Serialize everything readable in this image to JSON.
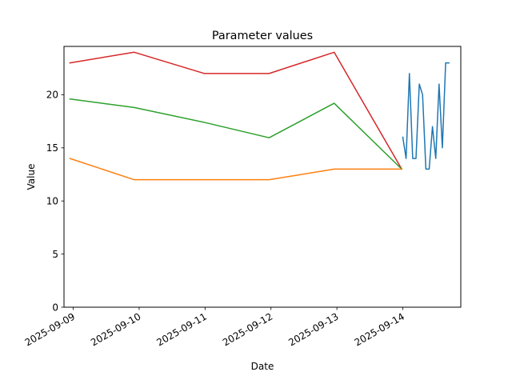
{
  "chart_data": {
    "type": "line",
    "title": "Parameter values",
    "xlabel": "Date",
    "ylabel": "Value",
    "x_tick_labels": [
      "2025-09-09",
      "2025-09-10",
      "2025-09-11",
      "2025-09-12",
      "2025-09-13",
      "2025-09-14"
    ],
    "y_tick_labels": [
      "0",
      "5",
      "10",
      "15",
      "20"
    ],
    "y_ticks": [
      0,
      5,
      10,
      15,
      20
    ],
    "xlim": [
      "2025-09-08 20:38",
      "2025-09-14 21:07"
    ],
    "ylim": [
      0,
      24.55
    ],
    "grid": false,
    "legend": "none",
    "series": [
      {
        "color": "#d62728",
        "x": [
          "2025-09-08 22:48",
          "2025-09-09 22:12",
          "2025-09-10 23:42",
          "2025-09-11 23:19",
          "2025-09-12 23:00",
          "2025-09-13 23:36"
        ],
        "y": [
          23,
          24,
          22,
          22,
          24,
          13
        ]
      },
      {
        "color": "#2ca02c",
        "x": [
          "2025-09-08 22:48",
          "2025-09-09 22:12",
          "2025-09-10 23:42",
          "2025-09-11 23:19",
          "2025-09-12 23:00",
          "2025-09-13 23:36"
        ],
        "y": [
          19.6,
          18.8,
          17.4,
          15.95,
          19.2,
          13
        ]
      },
      {
        "color": "#ff7f0e",
        "x": [
          "2025-09-08 22:48",
          "2025-09-09 22:12",
          "2025-09-10 23:42",
          "2025-09-11 23:19",
          "2025-09-12 23:00",
          "2025-09-13 23:36"
        ],
        "y": [
          14,
          12,
          12,
          12,
          13,
          13
        ]
      },
      {
        "color": "#1f77b4",
        "x": [
          "2025-09-14 00:00",
          "2025-09-14 01:12",
          "2025-09-14 02:24",
          "2025-09-14 03:36",
          "2025-09-14 04:48",
          "2025-09-14 06:00",
          "2025-09-14 07:12",
          "2025-09-14 08:24",
          "2025-09-14 09:36",
          "2025-09-14 10:48",
          "2025-09-14 12:00",
          "2025-09-14 13:12",
          "2025-09-14 14:24",
          "2025-09-14 15:36",
          "2025-09-14 16:48"
        ],
        "y": [
          16,
          14,
          22,
          14,
          14,
          21,
          20,
          13,
          13,
          17,
          14,
          21,
          15,
          23,
          23
        ]
      }
    ]
  }
}
